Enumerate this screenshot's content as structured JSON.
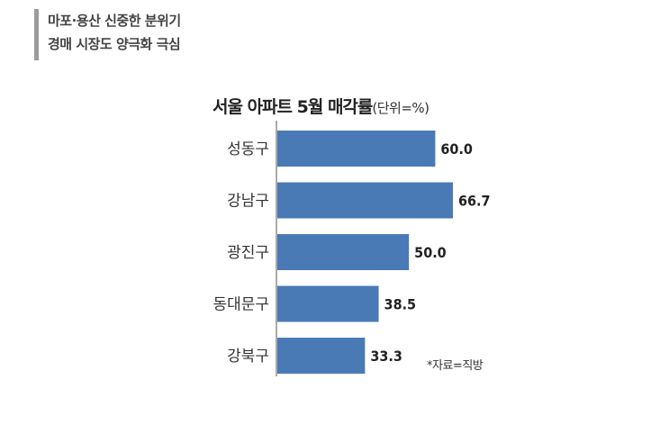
{
  "headline": {
    "line1": "마포·용산 신중한 분위기",
    "line2": "경매 시장도 양극화 극심"
  },
  "chart_data": {
    "type": "bar",
    "orientation": "horizontal",
    "title": "서울 아파트 5월 매각률",
    "unit": "(단위=%)",
    "categories": [
      "성동구",
      "강남구",
      "광진구",
      "동대문구",
      "강북구"
    ],
    "values": [
      60.0,
      66.7,
      50.0,
      38.5,
      33.3
    ],
    "value_labels": [
      "60.0",
      "66.7",
      "50.0",
      "38.5",
      "33.3"
    ],
    "bar_color": "#4a7ab5",
    "grid": false,
    "legend": "none"
  },
  "source": "*자료=직방"
}
